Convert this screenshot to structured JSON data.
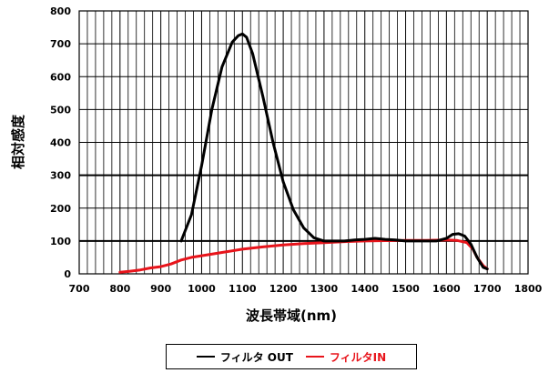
{
  "colors": {
    "series_out": "#000000",
    "series_in": "#e8141b",
    "grid": "#000000",
    "background": "#ffffff"
  },
  "chart_data": {
    "type": "line",
    "title": "",
    "xlabel": "波長帯域(nm)",
    "ylabel": "相対感度",
    "xlim": [
      700,
      1800
    ],
    "ylim": [
      0,
      800
    ],
    "x_major_ticks": [
      700,
      800,
      900,
      1000,
      1100,
      1200,
      1300,
      1400,
      1500,
      1600,
      1700,
      1800
    ],
    "y_ticks": [
      0,
      100,
      200,
      300,
      400,
      500,
      600,
      700,
      800
    ],
    "x_minor_step": 20,
    "grid": true,
    "legend": "bottom",
    "series": [
      {
        "name": "フィルタ OUT",
        "color": "#000000",
        "x": [
          950,
          975,
          1000,
          1025,
          1050,
          1075,
          1090,
          1100,
          1110,
          1125,
          1150,
          1175,
          1200,
          1225,
          1250,
          1275,
          1300,
          1325,
          1350,
          1375,
          1400,
          1425,
          1450,
          1475,
          1500,
          1525,
          1550,
          1575,
          1600,
          1615,
          1630,
          1645,
          1660,
          1675,
          1690,
          1700
        ],
        "y": [
          100,
          180,
          330,
          500,
          630,
          705,
          725,
          730,
          720,
          670,
          540,
          400,
          280,
          195,
          140,
          110,
          100,
          100,
          100,
          103,
          105,
          108,
          105,
          103,
          100,
          100,
          100,
          100,
          108,
          120,
          122,
          115,
          90,
          50,
          20,
          15
        ]
      },
      {
        "name": "フィルタIN",
        "color": "#e8141b",
        "x": [
          800,
          825,
          850,
          875,
          900,
          925,
          950,
          975,
          1000,
          1050,
          1100,
          1150,
          1200,
          1250,
          1300,
          1350,
          1400,
          1450,
          1500,
          1550,
          1600,
          1625,
          1650,
          1665,
          1675,
          1690,
          1700
        ],
        "y": [
          5,
          8,
          12,
          18,
          22,
          30,
          42,
          50,
          55,
          65,
          75,
          82,
          88,
          92,
          95,
          98,
          100,
          101,
          102,
          102,
          103,
          102,
          95,
          75,
          50,
          25,
          15
        ]
      }
    ]
  }
}
